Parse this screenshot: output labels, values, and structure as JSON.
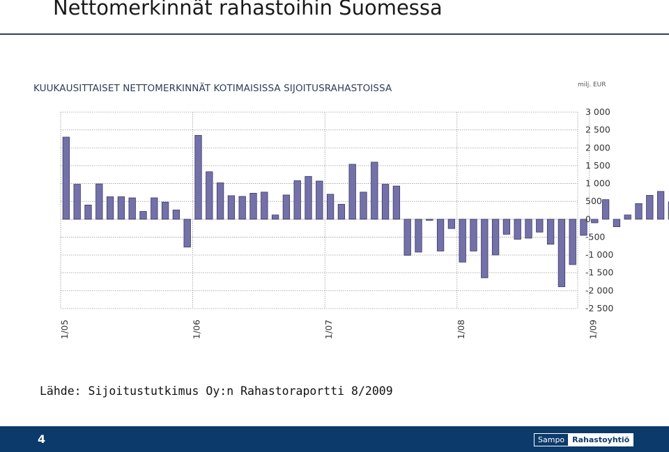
{
  "slide": {
    "title": "Nettomerkinnät rahastoihin Suomessa",
    "source": "Lähde:  Sijoitustutkimus Oy:n Rahastoraportti 8/2009",
    "page_number": "4",
    "logo": {
      "part1": "Sampo",
      "part2": "Rahastoyhtiö"
    }
  },
  "colors": {
    "bar": "#7470a8",
    "bar_edge": "#3a3868",
    "grid": "#9a9a9a",
    "footer": "#0c3a6a"
  },
  "chart_data": {
    "type": "bar",
    "title": "KUUKAUSITTAISET NETTOMERKINNÄT KOTIMAISISSA SIJOITUSRAHASTOISSA",
    "unit": "milj. EUR",
    "x_tick_labels": [
      "1/05",
      "1/06",
      "1/07",
      "1/08",
      "1/09"
    ],
    "x_tick_positions": [
      0,
      12,
      24,
      36,
      48
    ],
    "y_tick_labels": [
      "3 000",
      "2 500",
      "2 000",
      "1 500",
      "1 000",
      "500",
      "0",
      "-500",
      "-1 000",
      "-1 500",
      "-2 000",
      "-2 500"
    ],
    "ylim": [
      -2500,
      3000
    ],
    "grid": true,
    "categories": [
      "1/05",
      "2/05",
      "3/05",
      "4/05",
      "5/05",
      "6/05",
      "7/05",
      "8/05",
      "9/05",
      "10/05",
      "11/05",
      "12/05",
      "1/06",
      "2/06",
      "3/06",
      "4/06",
      "5/06",
      "6/06",
      "7/06",
      "8/06",
      "9/06",
      "10/06",
      "11/06",
      "12/06",
      "1/07",
      "2/07",
      "3/07",
      "4/07",
      "5/07",
      "6/07",
      "7/07",
      "8/07",
      "9/07",
      "10/07",
      "11/07",
      "12/07",
      "1/08",
      "2/08",
      "3/08",
      "4/08",
      "5/08",
      "6/08",
      "7/08",
      "8/08",
      "9/08",
      "10/08",
      "11/08",
      "12/08",
      "1/09",
      "2/09",
      "3/09",
      "4/09",
      "5/09",
      "6/09",
      "7/09",
      "8/09"
    ],
    "values": [
      2300,
      980,
      400,
      990,
      630,
      630,
      600,
      220,
      600,
      480,
      260,
      -780,
      2350,
      1330,
      1020,
      660,
      640,
      730,
      760,
      120,
      680,
      1080,
      1200,
      1070,
      700,
      420,
      1540,
      760,
      1600,
      980,
      930,
      -1010,
      -920,
      -30,
      -890,
      -260,
      -1200,
      -890,
      -1640,
      -1000,
      -420,
      -560,
      -530,
      -360,
      -700,
      -1890,
      -1270,
      -450,
      -100,
      550,
      -210,
      120,
      440,
      670,
      780,
      490
    ]
  }
}
